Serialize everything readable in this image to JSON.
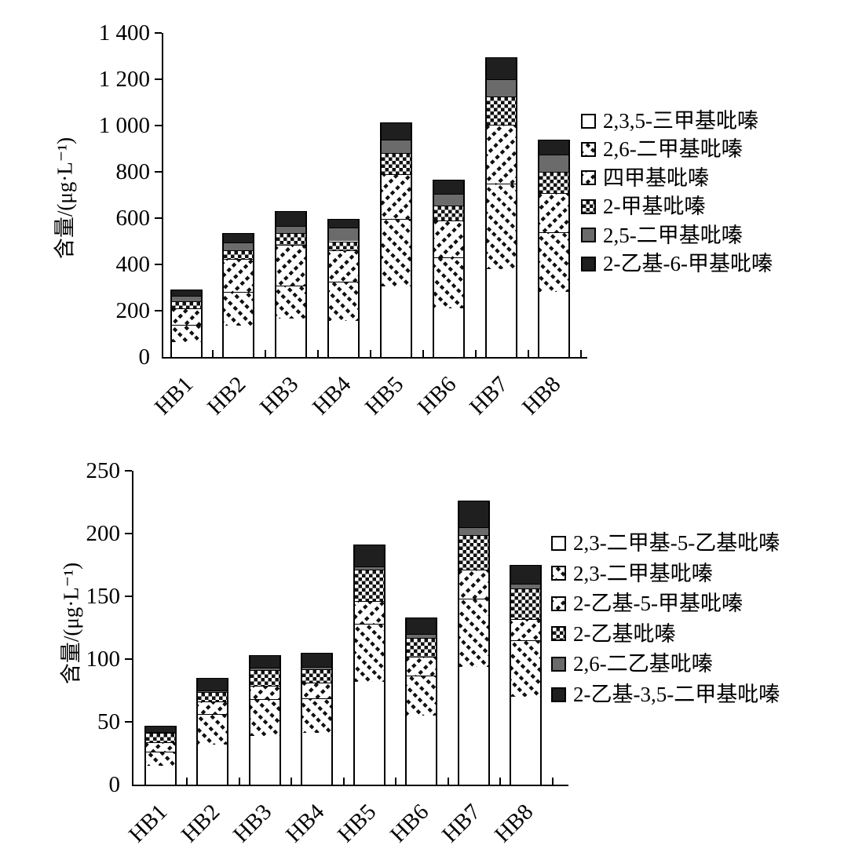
{
  "page": {
    "background": "#ffffff"
  },
  "colors": {
    "axis": "#000000",
    "gray_fill": "#6b6b6b",
    "black_fill": "#1f1f1f",
    "pattern_ink": "#121212"
  },
  "chart_data": [
    {
      "type": "bar",
      "stacked": true,
      "title": "",
      "xlabel": "",
      "ylabel": "含量/(μg·L⁻¹)",
      "ylim": [
        0,
        1400
      ],
      "ytick_step": 200,
      "ytick_labels": [
        "0",
        "200",
        "400",
        "600",
        "800",
        "1 000",
        "1 200",
        "1 400"
      ],
      "categories": [
        "HB1",
        "HB2",
        "HB3",
        "HB4",
        "HB5",
        "HB6",
        "HB7",
        "HB8"
      ],
      "grid": false,
      "legend_position": "right",
      "series": [
        {
          "name": "2,3,5-三甲基吡嗪",
          "marker": "open",
          "values": [
            65,
            135,
            165,
            155,
            305,
            210,
            380,
            280
          ]
        },
        {
          "name": "2,6-二甲基吡嗪",
          "marker": "diagonal-dots-down",
          "values": [
            75,
            145,
            145,
            170,
            290,
            220,
            370,
            260
          ]
        },
        {
          "name": "四甲基吡嗪",
          "marker": "diagonal-dots-up",
          "values": [
            70,
            145,
            175,
            135,
            195,
            160,
            255,
            170
          ]
        },
        {
          "name": "2-甲基吡嗪",
          "marker": "checkerboard",
          "values": [
            30,
            35,
            50,
            40,
            90,
            65,
            120,
            90
          ]
        },
        {
          "name": "2,5-二甲基吡嗪",
          "marker": "gray-solid",
          "values": [
            25,
            35,
            30,
            60,
            60,
            50,
            75,
            75
          ]
        },
        {
          "name": "2-乙基-6-甲基吡嗪",
          "marker": "black-solid",
          "values": [
            25,
            40,
            65,
            35,
            75,
            60,
            95,
            65
          ]
        }
      ],
      "totals": [
        290,
        535,
        630,
        595,
        1015,
        765,
        1295,
        940
      ]
    },
    {
      "type": "bar",
      "stacked": true,
      "title": "",
      "xlabel": "",
      "ylabel": "含量/(μg·L⁻¹)",
      "ylim": [
        0,
        250
      ],
      "ytick_step": 50,
      "ytick_labels": [
        "0",
        "50",
        "100",
        "150",
        "200",
        "250"
      ],
      "categories": [
        "HB1",
        "HB2",
        "HB3",
        "HB4",
        "HB5",
        "HB6",
        "HB7",
        "HB8"
      ],
      "grid": false,
      "legend_position": "right",
      "series": [
        {
          "name": "2,3-二甲基-5-乙基吡嗪",
          "marker": "open",
          "values": [
            15,
            32,
            39,
            41,
            82,
            55,
            94,
            70
          ]
        },
        {
          "name": "2,3-二甲基吡嗪",
          "marker": "diagonal-dots-down",
          "values": [
            11,
            24,
            29,
            28,
            46,
            32,
            54,
            45
          ]
        },
        {
          "name": "2-乙基-5-甲基吡嗪",
          "marker": "diagonal-dots-up",
          "values": [
            8,
            10,
            11,
            12,
            18,
            15,
            23,
            17
          ]
        },
        {
          "name": "2-乙基吡嗪",
          "marker": "checkerboard",
          "values": [
            7,
            8,
            12,
            11,
            25,
            15,
            28,
            24
          ]
        },
        {
          "name": "2,6-二乙基吡嗪",
          "marker": "gray-solid",
          "values": [
            1,
            1,
            2,
            2,
            3,
            3,
            6,
            4
          ]
        },
        {
          "name": "2-乙基-3,5-二甲基吡嗪",
          "marker": "black-solid",
          "values": [
            5,
            10,
            10,
            11,
            17,
            13,
            21,
            15
          ]
        }
      ],
      "totals": [
        47,
        85,
        103,
        105,
        191,
        133,
        226,
        175
      ]
    }
  ]
}
